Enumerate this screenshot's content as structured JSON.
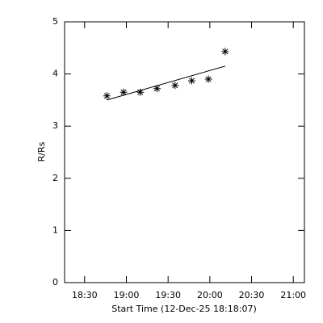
{
  "chart_data": {
    "type": "scatter",
    "xlabel": "Start Time (12-Dec-25 18:18:07)",
    "ylabel": "R/Rs",
    "xlim": [
      15.6,
      188
    ],
    "xticks": [
      {
        "value": 30,
        "label": "18:30"
      },
      {
        "value": 60,
        "label": "19:00"
      },
      {
        "value": 90,
        "label": "19:30"
      },
      {
        "value": 120,
        "label": "20:00"
      },
      {
        "value": 150,
        "label": "20:30"
      },
      {
        "value": 180,
        "label": "21:00"
      }
    ],
    "ylim": [
      0,
      5
    ],
    "yticks": [
      0,
      1,
      2,
      3,
      4,
      5
    ],
    "color": "#000000",
    "series": [
      {
        "mark": "asterisk",
        "x": [
          46,
          58,
          70,
          82,
          95,
          107,
          119,
          131
        ],
        "values": [
          3.58,
          3.65,
          3.65,
          3.72,
          3.78,
          3.87,
          3.9,
          4.43
        ]
      },
      {
        "mark": "line",
        "x": [
          46,
          131
        ],
        "values": [
          3.5,
          4.15
        ]
      }
    ]
  }
}
